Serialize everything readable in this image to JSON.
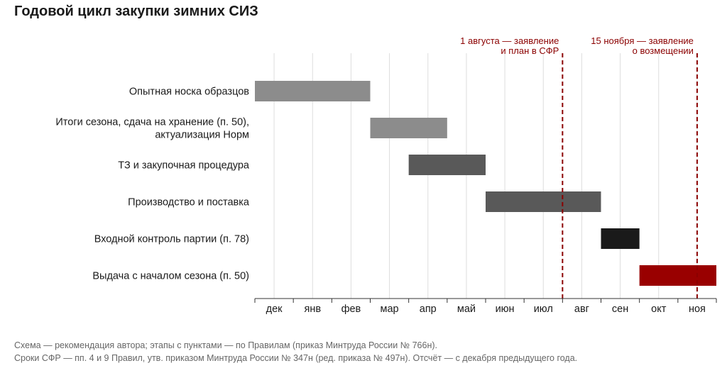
{
  "title": "Годовой цикл закупки зимних СИЗ",
  "colors": {
    "grid": "#dddddd",
    "axis": "#333333",
    "marker": "#8b0000",
    "text": "#1a1a1a",
    "note": "#666666"
  },
  "chart_data": {
    "type": "gantt",
    "title": "Годовой цикл закупки зимних СИЗ",
    "x_unit": "month index (0 = дек предыдущего года)",
    "months": [
      "дек",
      "янв",
      "фев",
      "мар",
      "апр",
      "май",
      "июн",
      "июл",
      "авг",
      "сен",
      "окт",
      "ноя"
    ],
    "xlim": [
      0,
      12
    ],
    "grid": true,
    "tasks": [
      {
        "label": [
          "Опытная носка образцов"
        ],
        "start": 0,
        "end": 3,
        "color": "#8c8c8c"
      },
      {
        "label": [
          "Итоги сезона, сдача на хранение (п. 50),",
          "актуализация Норм"
        ],
        "start": 3,
        "end": 5,
        "color": "#8c8c8c"
      },
      {
        "label": [
          "ТЗ и закупочная процедура"
        ],
        "start": 4,
        "end": 6,
        "color": "#595959"
      },
      {
        "label": [
          "Производство и поставка"
        ],
        "start": 6,
        "end": 9,
        "color": "#595959"
      },
      {
        "label": [
          "Входной контроль партии (п. 78)"
        ],
        "start": 9,
        "end": 10,
        "color": "#1a1a1a"
      },
      {
        "label": [
          "Выдача с началом сезона (п. 50)"
        ],
        "start": 10,
        "end": 12,
        "color": "#990000"
      }
    ],
    "markers": [
      {
        "x": 8,
        "label": [
          "1 августа — заявление",
          "и план в СФР"
        ]
      },
      {
        "x": 11.5,
        "label": [
          "15 ноября — заявление",
          "о возмещении"
        ]
      }
    ]
  },
  "notes": [
    "Схема — рекомендация автора; этапы с пунктами — по Правилам (приказ Минтруда России № 766н).",
    "Сроки СФР — пп. 4 и 9 Правил, утв. приказом Минтруда России № 347н (ред. приказа № 497н). Отсчёт — с декабря предыдущего года."
  ]
}
